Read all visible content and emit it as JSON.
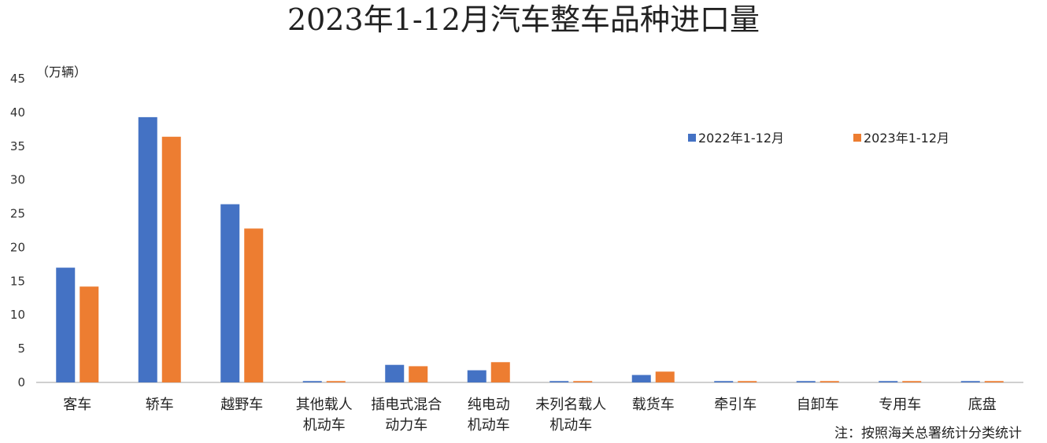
{
  "chart_data": {
    "type": "bar",
    "title": "2023年1-12月汽车整车品种进口量",
    "ylabel": "（万辆）",
    "xlabel": "",
    "ylim": [
      0,
      45
    ],
    "yticks": [
      "0",
      "5",
      "10",
      "15",
      "20",
      "25",
      "30",
      "35",
      "40",
      "45"
    ],
    "grid": false,
    "legend_position": "top-right",
    "categories": [
      [
        "客车"
      ],
      [
        "轿车"
      ],
      [
        "越野车"
      ],
      [
        "其他载人",
        "机动车"
      ],
      [
        "插电式混合",
        "动力车"
      ],
      [
        "纯电动",
        "机动车"
      ],
      [
        "未列名载人",
        "机动车"
      ],
      [
        "载货车"
      ],
      [
        "牵引车"
      ],
      [
        "自卸车"
      ],
      [
        "专用车"
      ],
      [
        "底盘"
      ]
    ],
    "series": [
      {
        "name": "2022年1-12月",
        "color": "#4472C4",
        "values": [
          17.0,
          39.3,
          26.4,
          0.2,
          2.6,
          1.8,
          0.2,
          1.1,
          0.2,
          0.2,
          0.2,
          0.2
        ]
      },
      {
        "name": "2023年1-12月",
        "color": "#ED7D31",
        "values": [
          14.2,
          36.4,
          22.8,
          0.2,
          2.4,
          3.0,
          0.2,
          1.6,
          0.2,
          0.2,
          0.2,
          0.2
        ]
      }
    ],
    "note": "注：按照海关总署统计分类统计"
  }
}
